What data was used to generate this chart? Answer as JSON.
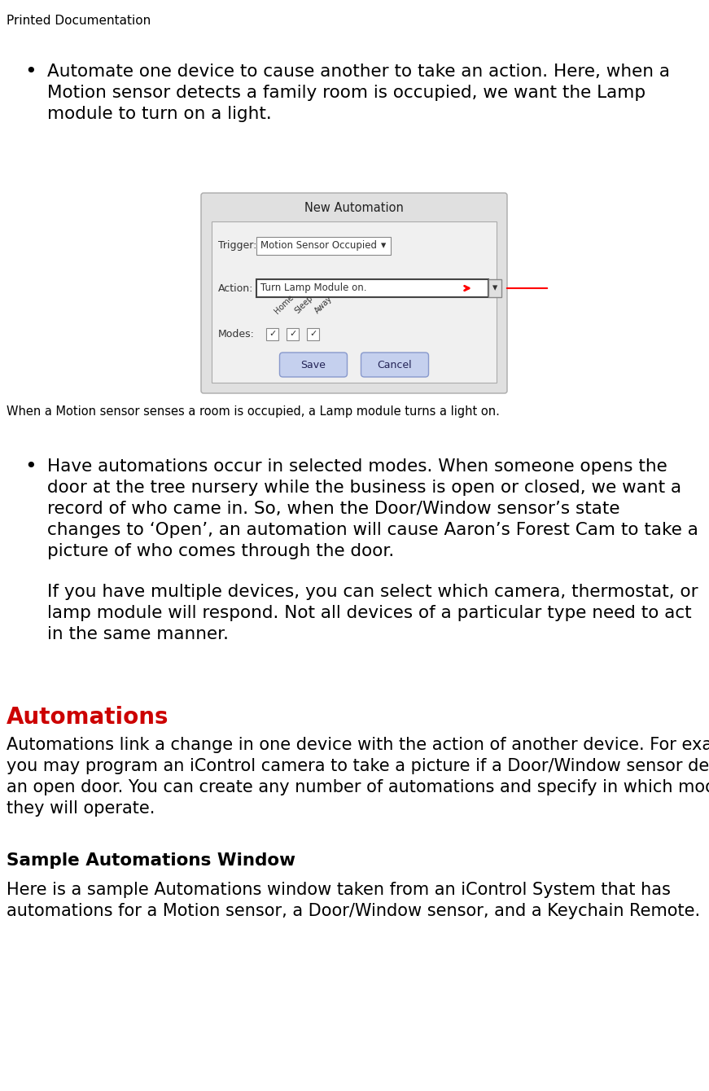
{
  "bg_color": "#ffffff",
  "header_text": "Printed Documentation",
  "header_fontsize": 11,
  "header_color": "#000000",
  "bullet1_lines": [
    "Automate one device to cause another to take an action. Here, when a",
    "Motion sensor detects a family room is occupied, we want the Lamp",
    "module to turn on a light."
  ],
  "bullet2_lines": [
    "Have automations occur in selected modes. When someone opens the",
    "door at the tree nursery while the business is open or closed, we want a",
    "record of who came in. So, when the Door/Window sensor’s state",
    "changes to ‘Open’, an automation will cause Aaron’s Forest Cam to take a",
    "picture of who comes through the door."
  ],
  "bullet2_extra_lines": [
    "If you have multiple devices, you can select which camera, thermostat, or",
    "lamp module will respond. Not all devices of a particular type need to act",
    "in the same manner."
  ],
  "caption_text": "When a Motion sensor senses a room is occupied, a Lamp module turns a light on.",
  "section_title": "Automations",
  "section_title_color": "#cc0000",
  "section_body_lines": [
    "Automations link a change in one device with the action of another device. For example,",
    "you may program an iControl camera to take a picture if a Door/Window sensor detects",
    "an open door. You can create any number of automations and specify in which modes",
    "they will operate."
  ],
  "subsection_title": "Sample Automations Window",
  "subsection_body_lines": [
    "Here is a sample Automations window taken from an iControl System that has",
    "automations for a Motion sensor, a Door/Window sensor, and a Keychain Remote."
  ],
  "dialog_title": "New Automation",
  "dialog_trigger_label": "Trigger:",
  "dialog_trigger_value": "Motion Sensor Occupied",
  "dialog_action_label": "Action:",
  "dialog_action_value": "Turn Lamp Module on.",
  "dialog_modes_label": "Modes:",
  "dialog_save": "Save",
  "dialog_cancel": "Cancel",
  "dialog_modes_labels": [
    "Home",
    "Sleep",
    "Away"
  ],
  "body_fontsize": 15.5,
  "caption_fontsize": 10.5,
  "bullet_fontsize": 15.5,
  "section_title_fontsize": 20,
  "section_body_fontsize": 15,
  "subsection_title_fontsize": 15.5,
  "subsection_body_fontsize": 15
}
